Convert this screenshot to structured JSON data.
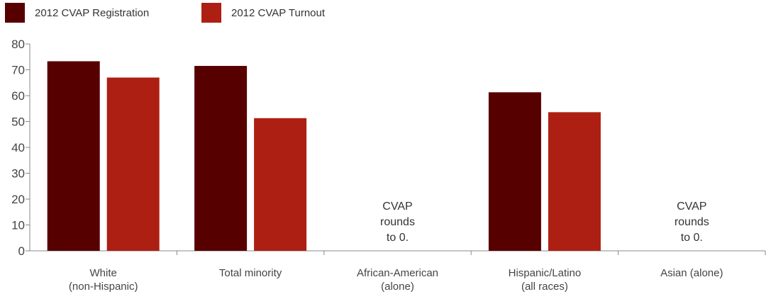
{
  "chart_data": {
    "type": "bar",
    "categories": [
      [
        "White",
        "(non-Hispanic)"
      ],
      [
        "Total minority"
      ],
      [
        "African-American",
        "(alone)"
      ],
      [
        "Hispanic/Latino",
        "(all races)"
      ],
      [
        "Asian (alone)"
      ]
    ],
    "series": [
      {
        "name": "2012 CVAP Registration",
        "color": "#570000",
        "values": [
          73.3,
          71.5,
          null,
          61.3,
          null
        ]
      },
      {
        "name": "2012 CVAP Turnout",
        "color": "#ad1f13",
        "values": [
          67.0,
          51.3,
          null,
          53.6,
          null
        ]
      }
    ],
    "annotations": [
      {
        "category_index": 2,
        "lines": [
          "CVAP",
          "rounds",
          "to 0."
        ]
      },
      {
        "category_index": 4,
        "lines": [
          "CVAP",
          "rounds",
          "to 0."
        ]
      }
    ],
    "yticks": [
      0,
      10,
      20,
      30,
      40,
      50,
      60,
      70,
      80
    ],
    "ylim": [
      0,
      80
    ],
    "title": "",
    "xlabel": "",
    "ylabel": "",
    "grid": false,
    "legend_position": "top-left"
  }
}
